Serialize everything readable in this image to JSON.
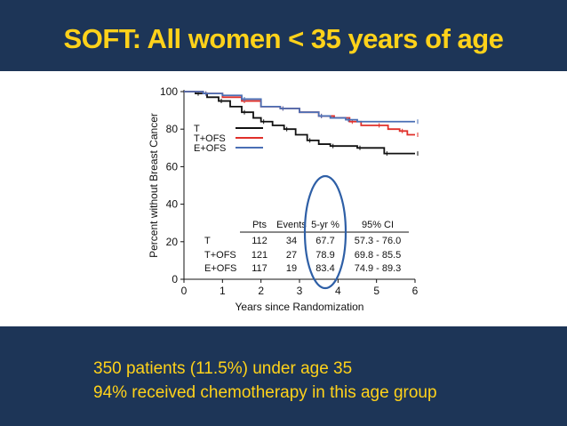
{
  "slide": {
    "title": "SOFT: All women < 35 years of age",
    "bullets": [
      "350 patients (11.5%) under age 35",
      "94% received chemotherapy in this age group"
    ]
  },
  "colors": {
    "band": "#1d3557",
    "title": "#ffd21a",
    "T": "#111111",
    "T_OFS": "#e0302a",
    "E_OFS": "#4a6fb5",
    "highlight": "#2e5fa6"
  },
  "chart_data": {
    "type": "line",
    "title": "",
    "xlabel": "Years since Randomization",
    "ylabel": "Percent without Breast Cancer",
    "xlim": [
      0,
      6
    ],
    "ylim": [
      0,
      100
    ],
    "xticks": [
      "0",
      "1",
      "2",
      "3",
      "4",
      "5",
      "6"
    ],
    "yticks": [
      "0",
      "20",
      "40",
      "60",
      "80",
      "100"
    ],
    "legend_position": "top-left",
    "series": [
      {
        "name": "T",
        "color": "#111111",
        "x": [
          0,
          0.3,
          0.6,
          0.9,
          1.2,
          1.5,
          1.8,
          2.0,
          2.3,
          2.6,
          2.9,
          3.2,
          3.5,
          3.8,
          4.1,
          4.5,
          4.9,
          5.2,
          5.5,
          6.0
        ],
        "y": [
          100,
          99,
          97,
          95,
          92,
          89,
          86,
          84,
          82,
          80,
          77,
          74,
          72,
          71,
          71,
          70,
          70,
          67,
          67,
          67
        ]
      },
      {
        "name": "T+OFS",
        "color": "#e0302a",
        "x": [
          0,
          0.5,
          1.0,
          1.5,
          2.0,
          2.5,
          3.0,
          3.5,
          3.9,
          4.3,
          4.6,
          5.0,
          5.3,
          5.6,
          5.8,
          6.0
        ],
        "y": [
          100,
          99,
          97,
          95,
          92,
          91,
          89,
          87,
          86,
          84,
          82,
          82,
          80,
          79,
          77,
          77
        ]
      },
      {
        "name": "E+OFS",
        "color": "#4a6fb5",
        "x": [
          0,
          0.5,
          1.0,
          1.5,
          2.0,
          2.5,
          3.0,
          3.5,
          3.8,
          4.2,
          4.5,
          6.0
        ],
        "y": [
          100,
          99,
          98,
          96,
          92,
          91,
          89,
          87,
          86,
          85,
          84,
          84
        ]
      }
    ],
    "table": {
      "headers": [
        "",
        "Pts",
        "Events",
        "5-yr %",
        "95% CI"
      ],
      "rows": [
        [
          "T",
          "112",
          "34",
          "67.7",
          "57.3 - 76.0"
        ],
        [
          "T+OFS",
          "121",
          "27",
          "78.9",
          "69.8 - 85.5"
        ],
        [
          "E+OFS",
          "117",
          "19",
          "83.4",
          "74.9 - 89.3"
        ]
      ]
    }
  }
}
